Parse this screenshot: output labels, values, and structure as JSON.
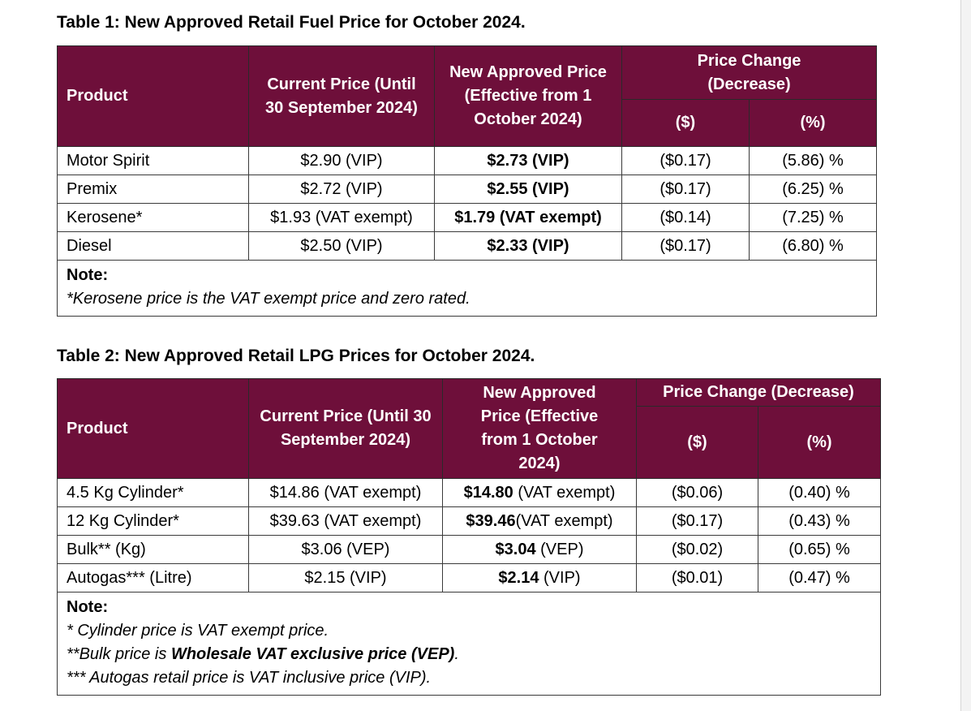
{
  "table1": {
    "title": "Table 1: New Approved Retail Fuel Price for October 2024.",
    "headers": {
      "product": "Product",
      "current_price": "Current Price (Until 30 September 2024)",
      "new_price": "New Approved Price (Effective from 1 October 2024)",
      "price_change": "Price Change (Decrease)",
      "dollar": "($)",
      "percent": "(%)"
    },
    "rows": [
      {
        "product": "Motor Spirit",
        "current": "$2.90 (VIP)",
        "new": "$2.73 (VIP)",
        "dollar": "($0.17)",
        "percent": "(5.86) %"
      },
      {
        "product": "Premix",
        "current": "$2.72 (VIP)",
        "new": "$2.55 (VIP)",
        "dollar": "($0.17)",
        "percent": "(6.25) %"
      },
      {
        "product": "Kerosene*",
        "current": "$1.93 (VAT exempt)",
        "new": "$1.79 (VAT exempt)",
        "dollar": "($0.14)",
        "percent": "(7.25) %"
      },
      {
        "product": "Diesel",
        "current": "$2.50 (VIP)",
        "new": "$2.33 (VIP)",
        "dollar": "($0.17)",
        "percent": "(6.80) %"
      }
    ],
    "note_title": "Note:",
    "note_lines": [
      "*Kerosene price is the VAT exempt price and zero rated."
    ]
  },
  "table2": {
    "title": "Table 2: New Approved Retail LPG Prices for October 2024.",
    "headers": {
      "product": "Product",
      "current_price": "Current Price (Until 30 September 2024)",
      "new_price": "New Approved Price (Effective from 1 October 2024)",
      "price_change": "Price Change (Decrease)",
      "dollar": "($)",
      "percent": "(%)"
    },
    "rows": [
      {
        "product": "4.5 Kg Cylinder*",
        "current": "$14.86 (VAT exempt)",
        "new_amount": "$14.80",
        "new_suffix": " (VAT exempt)",
        "dollar": "($0.06)",
        "percent": "(0.40) %"
      },
      {
        "product": "12 Kg Cylinder*",
        "current": "$39.63 (VAT exempt)",
        "new_amount": "$39.46",
        "new_suffix": "(VAT exempt)",
        "dollar": "($0.17)",
        "percent": "(0.43) %"
      },
      {
        "product": "Bulk** (Kg)",
        "current": "$3.06 (VEP)",
        "new_amount": "$3.04",
        "new_suffix": " (VEP)",
        "dollar": "($0.02)",
        "percent": "(0.65) %"
      },
      {
        "product": "Autogas*** (Litre)",
        "current": "$2.15 (VIP)",
        "new_amount": "$2.14",
        "new_suffix": " (VIP)",
        "dollar": "($0.01)",
        "percent": "(0.47) %"
      }
    ],
    "note_title": "Note:",
    "note_line1": "* Cylinder price is VAT exempt price.",
    "note_line2_prefix": "**Bulk price is ",
    "note_line2_bold": "Wholesale VAT exclusive price (VEP)",
    "note_line2_suffix": ".",
    "note_line3": "*** Autogas retail price is VAT inclusive price (VIP)."
  },
  "colors": {
    "header_bg": "#6e0f3a",
    "header_text": "#ffffff"
  }
}
